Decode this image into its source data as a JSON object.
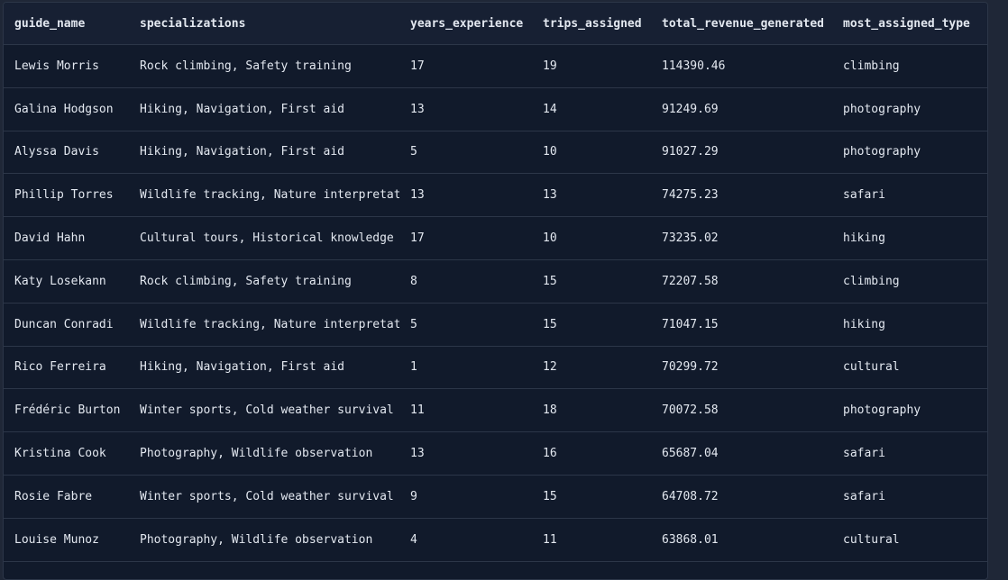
{
  "table": {
    "columns": [
      "guide_name",
      "specializations",
      "years_experience",
      "trips_assigned",
      "total_revenue_generated",
      "most_assigned_type"
    ],
    "rows": [
      [
        "Lewis Morris",
        "Rock climbing, Safety training",
        "17",
        "19",
        "114390.46",
        "climbing"
      ],
      [
        "Galina Hodgson",
        "Hiking, Navigation, First aid",
        "13",
        "14",
        "91249.69",
        "photography"
      ],
      [
        "Alyssa Davis",
        "Hiking, Navigation, First aid",
        "5",
        "10",
        "91027.29",
        "photography"
      ],
      [
        "Phillip Torres",
        "Wildlife tracking, Nature interpretation",
        "13",
        "13",
        "74275.23",
        "safari"
      ],
      [
        "David Hahn",
        "Cultural tours, Historical knowledge",
        "17",
        "10",
        "73235.02",
        "hiking"
      ],
      [
        "Katy Losekann",
        "Rock climbing, Safety training",
        "8",
        "15",
        "72207.58",
        "climbing"
      ],
      [
        "Duncan Conradi",
        "Wildlife tracking, Nature interpretation",
        "5",
        "15",
        "71047.15",
        "hiking"
      ],
      [
        "Rico Ferreira",
        "Hiking, Navigation, First aid",
        "1",
        "12",
        "70299.72",
        "cultural"
      ],
      [
        "Frédéric Burton",
        "Winter sports, Cold weather survival",
        "11",
        "18",
        "70072.58",
        "photography"
      ],
      [
        "Kristina Cook",
        "Photography, Wildlife observation",
        "13",
        "16",
        "65687.04",
        "safari"
      ],
      [
        "Rosie Fabre",
        "Winter sports, Cold weather survival",
        "9",
        "15",
        "64708.72",
        "safari"
      ],
      [
        "Louise Munoz",
        "Photography, Wildlife observation",
        "4",
        "11",
        "63868.01",
        "cultural"
      ]
    ]
  }
}
